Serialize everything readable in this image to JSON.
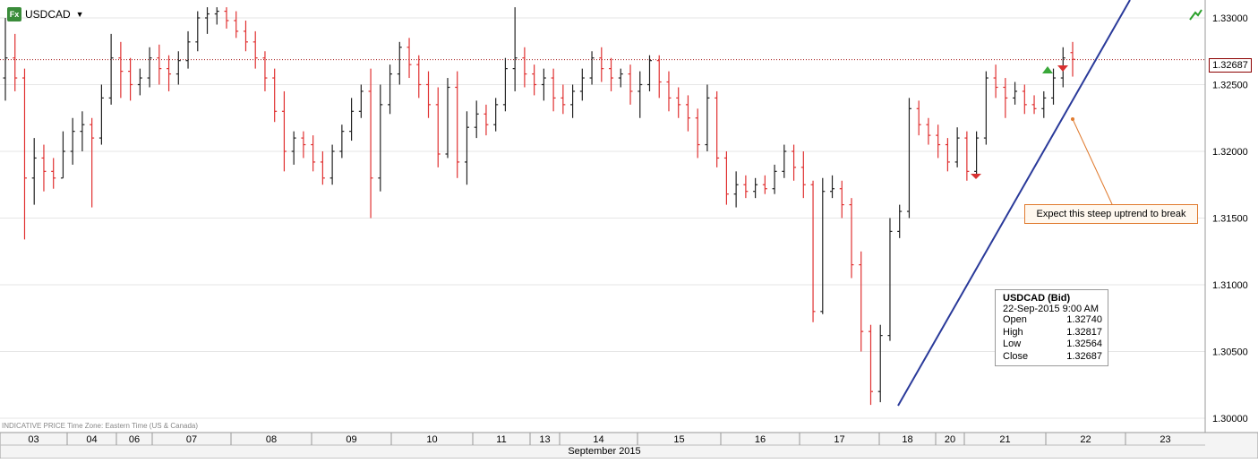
{
  "header": {
    "symbol": "USDCAD",
    "badge": "Fx"
  },
  "footer_note": "INDICATIVE PRICE  Time Zone: Eastern Time (US & Canada)",
  "last_price_label": "1.32687",
  "annotation": "Expect this steep uptrend to break",
  "tooltip": {
    "title": "USDCAD (Bid)",
    "datetime": "22-Sep-2015 9:00 AM",
    "rows": [
      {
        "label": "Open",
        "value": "1.32740"
      },
      {
        "label": "High",
        "value": "1.32817"
      },
      {
        "label": "Low",
        "value": "1.32564"
      },
      {
        "label": "Close",
        "value": "1.32687"
      }
    ]
  },
  "colors": {
    "up_bar": "#222222",
    "down_bar": "#e03030",
    "trendline": "#2a3a9a",
    "last_price_line": "#a01010",
    "annotation": "#e07a2e",
    "grid": "#e6e6e6"
  },
  "chart_data": {
    "type": "ohlc",
    "instrument": "USDCAD",
    "interval": "hourly",
    "ylim": [
      1.2995,
      1.3312
    ],
    "y_ticks": [
      "1.30000",
      "1.30500",
      "1.31000",
      "1.31500",
      "1.32000",
      "1.32500",
      "1.33000"
    ],
    "y_tick_values": [
      1.3,
      1.305,
      1.31,
      1.315,
      1.32,
      1.325,
      1.33
    ],
    "x_axis_month": "September 2015",
    "x_days": [
      "03",
      "04",
      "06",
      "07",
      "08",
      "09",
      "10",
      "11",
      "13",
      "14",
      "15",
      "16",
      "17",
      "18",
      "20",
      "21",
      "22",
      "23"
    ],
    "last_price": 1.32687,
    "bars": [
      [
        1.3255,
        1.33,
        1.3238,
        1.327
      ],
      [
        1.327,
        1.3288,
        1.3245,
        1.3255
      ],
      [
        1.3255,
        1.3262,
        1.3134,
        1.318
      ],
      [
        1.318,
        1.321,
        1.316,
        1.3195
      ],
      [
        1.3195,
        1.3205,
        1.317,
        1.3185
      ],
      [
        1.3185,
        1.3195,
        1.3172,
        1.318
      ],
      [
        1.318,
        1.3215,
        1.318,
        1.32
      ],
      [
        1.32,
        1.3225,
        1.319,
        1.3215
      ],
      [
        1.3215,
        1.323,
        1.32,
        1.322
      ],
      [
        1.322,
        1.3225,
        1.3158,
        1.321
      ],
      [
        1.321,
        1.325,
        1.3205,
        1.324
      ],
      [
        1.324,
        1.3288,
        1.3235,
        1.327
      ],
      [
        1.327,
        1.3282,
        1.324,
        1.326
      ],
      [
        1.326,
        1.327,
        1.3238,
        1.325
      ],
      [
        1.325,
        1.3262,
        1.3242,
        1.3255
      ],
      [
        1.3255,
        1.3278,
        1.3248,
        1.327
      ],
      [
        1.327,
        1.328,
        1.325,
        1.3262
      ],
      [
        1.3262,
        1.3272,
        1.3245,
        1.3258
      ],
      [
        1.3258,
        1.3275,
        1.325,
        1.3268
      ],
      [
        1.3268,
        1.329,
        1.3262,
        1.3282
      ],
      [
        1.3282,
        1.3305,
        1.3275,
        1.33
      ],
      [
        1.33,
        1.3308,
        1.3288,
        1.3303
      ],
      [
        1.3303,
        1.3308,
        1.3295,
        1.3305
      ],
      [
        1.3305,
        1.3308,
        1.3292,
        1.3298
      ],
      [
        1.3298,
        1.3305,
        1.3285,
        1.329
      ],
      [
        1.329,
        1.3298,
        1.3275,
        1.3282
      ],
      [
        1.3282,
        1.329,
        1.3262,
        1.327
      ],
      [
        1.327,
        1.3275,
        1.3245,
        1.3255
      ],
      [
        1.3255,
        1.3262,
        1.3222,
        1.323
      ],
      [
        1.323,
        1.3245,
        1.3185,
        1.32
      ],
      [
        1.32,
        1.3215,
        1.319,
        1.321
      ],
      [
        1.321,
        1.3215,
        1.3195,
        1.3205
      ],
      [
        1.3205,
        1.3212,
        1.3185,
        1.3192
      ],
      [
        1.3192,
        1.32,
        1.3175,
        1.318
      ],
      [
        1.318,
        1.3205,
        1.3175,
        1.32
      ],
      [
        1.32,
        1.322,
        1.3195,
        1.3215
      ],
      [
        1.3215,
        1.324,
        1.3208,
        1.323
      ],
      [
        1.323,
        1.325,
        1.3225,
        1.3245
      ],
      [
        1.3245,
        1.3262,
        1.315,
        1.318
      ],
      [
        1.318,
        1.325,
        1.317,
        1.3235
      ],
      [
        1.3235,
        1.3265,
        1.3228,
        1.3258
      ],
      [
        1.3258,
        1.3282,
        1.325,
        1.3278
      ],
      [
        1.3278,
        1.3285,
        1.3255,
        1.3265
      ],
      [
        1.3265,
        1.3272,
        1.324,
        1.325
      ],
      [
        1.325,
        1.326,
        1.3225,
        1.3235
      ],
      [
        1.3235,
        1.3248,
        1.3188,
        1.3198
      ],
      [
        1.3198,
        1.3255,
        1.3195,
        1.3248
      ],
      [
        1.3248,
        1.326,
        1.318,
        1.3192
      ],
      [
        1.3192,
        1.323,
        1.3175,
        1.3218
      ],
      [
        1.3218,
        1.3238,
        1.321,
        1.3228
      ],
      [
        1.3228,
        1.3235,
        1.3212,
        1.322
      ],
      [
        1.322,
        1.324,
        1.3215,
        1.3235
      ],
      [
        1.3235,
        1.327,
        1.323,
        1.3262
      ],
      [
        1.3262,
        1.3308,
        1.3245,
        1.327
      ],
      [
        1.327,
        1.3278,
        1.3248,
        1.3258
      ],
      [
        1.3258,
        1.3265,
        1.3242,
        1.325
      ],
      [
        1.325,
        1.3262,
        1.3238,
        1.3255
      ],
      [
        1.3255,
        1.3262,
        1.323,
        1.324
      ],
      [
        1.324,
        1.325,
        1.3228,
        1.3235
      ],
      [
        1.3235,
        1.325,
        1.3225,
        1.3245
      ],
      [
        1.3245,
        1.3262,
        1.3238,
        1.3255
      ],
      [
        1.3255,
        1.3275,
        1.325,
        1.327
      ],
      [
        1.327,
        1.3278,
        1.3252,
        1.3262
      ],
      [
        1.3262,
        1.327,
        1.3245,
        1.3255
      ],
      [
        1.3255,
        1.3262,
        1.3248,
        1.3258
      ],
      [
        1.3258,
        1.3265,
        1.3235,
        1.3245
      ],
      [
        1.3245,
        1.326,
        1.3225,
        1.325
      ],
      [
        1.325,
        1.3272,
        1.3245,
        1.3268
      ],
      [
        1.3268,
        1.3272,
        1.324,
        1.3252
      ],
      [
        1.3252,
        1.326,
        1.323,
        1.324
      ],
      [
        1.324,
        1.3248,
        1.3225,
        1.3235
      ],
      [
        1.3235,
        1.3242,
        1.3215,
        1.3225
      ],
      [
        1.3225,
        1.3232,
        1.3195,
        1.3205
      ],
      [
        1.3205,
        1.325,
        1.32,
        1.324
      ],
      [
        1.324,
        1.3245,
        1.3188,
        1.3195
      ],
      [
        1.3195,
        1.32,
        1.316,
        1.3168
      ],
      [
        1.3168,
        1.3185,
        1.3158,
        1.3175
      ],
      [
        1.3175,
        1.3182,
        1.3165,
        1.317
      ],
      [
        1.317,
        1.318,
        1.3165,
        1.3175
      ],
      [
        1.3175,
        1.3182,
        1.3168,
        1.3172
      ],
      [
        1.3172,
        1.319,
        1.3168,
        1.3185
      ],
      [
        1.3185,
        1.3205,
        1.318,
        1.32
      ],
      [
        1.32,
        1.3205,
        1.3178,
        1.3188
      ],
      [
        1.3188,
        1.32,
        1.3165,
        1.3175
      ],
      [
        1.3175,
        1.3178,
        1.3072,
        1.308
      ],
      [
        1.308,
        1.318,
        1.3078,
        1.317
      ],
      [
        1.317,
        1.3182,
        1.3165,
        1.3172
      ],
      [
        1.3172,
        1.3178,
        1.315,
        1.316
      ],
      [
        1.316,
        1.3165,
        1.3105,
        1.3115
      ],
      [
        1.3115,
        1.3125,
        1.305,
        1.3065
      ],
      [
        1.3065,
        1.307,
        1.301,
        1.302
      ],
      [
        1.302,
        1.307,
        1.3012,
        1.3062
      ],
      [
        1.3062,
        1.315,
        1.3058,
        1.314
      ],
      [
        1.314,
        1.316,
        1.3135,
        1.3155
      ],
      [
        1.3155,
        1.324,
        1.315,
        1.3232
      ],
      [
        1.3232,
        1.3238,
        1.3212,
        1.322
      ],
      [
        1.322,
        1.3225,
        1.3205,
        1.3212
      ],
      [
        1.3212,
        1.322,
        1.3195,
        1.3205
      ],
      [
        1.3205,
        1.321,
        1.3185,
        1.3192
      ],
      [
        1.3192,
        1.3218,
        1.3188,
        1.321
      ],
      [
        1.321,
        1.3215,
        1.3178,
        1.3185
      ],
      [
        1.3185,
        1.3215,
        1.3182,
        1.321
      ],
      [
        1.321,
        1.326,
        1.3205,
        1.3255
      ],
      [
        1.3255,
        1.3265,
        1.324,
        1.3248
      ],
      [
        1.3248,
        1.3255,
        1.3225,
        1.324
      ],
      [
        1.324,
        1.3252,
        1.3235,
        1.3245
      ],
      [
        1.3245,
        1.325,
        1.3228,
        1.3235
      ],
      [
        1.3235,
        1.3242,
        1.3228,
        1.3232
      ],
      [
        1.3232,
        1.3245,
        1.3225,
        1.324
      ],
      [
        1.324,
        1.3262,
        1.3235,
        1.3255
      ],
      [
        1.3255,
        1.3278,
        1.3248,
        1.327
      ],
      [
        1.3274,
        1.3282,
        1.3256,
        1.3269
      ]
    ]
  }
}
